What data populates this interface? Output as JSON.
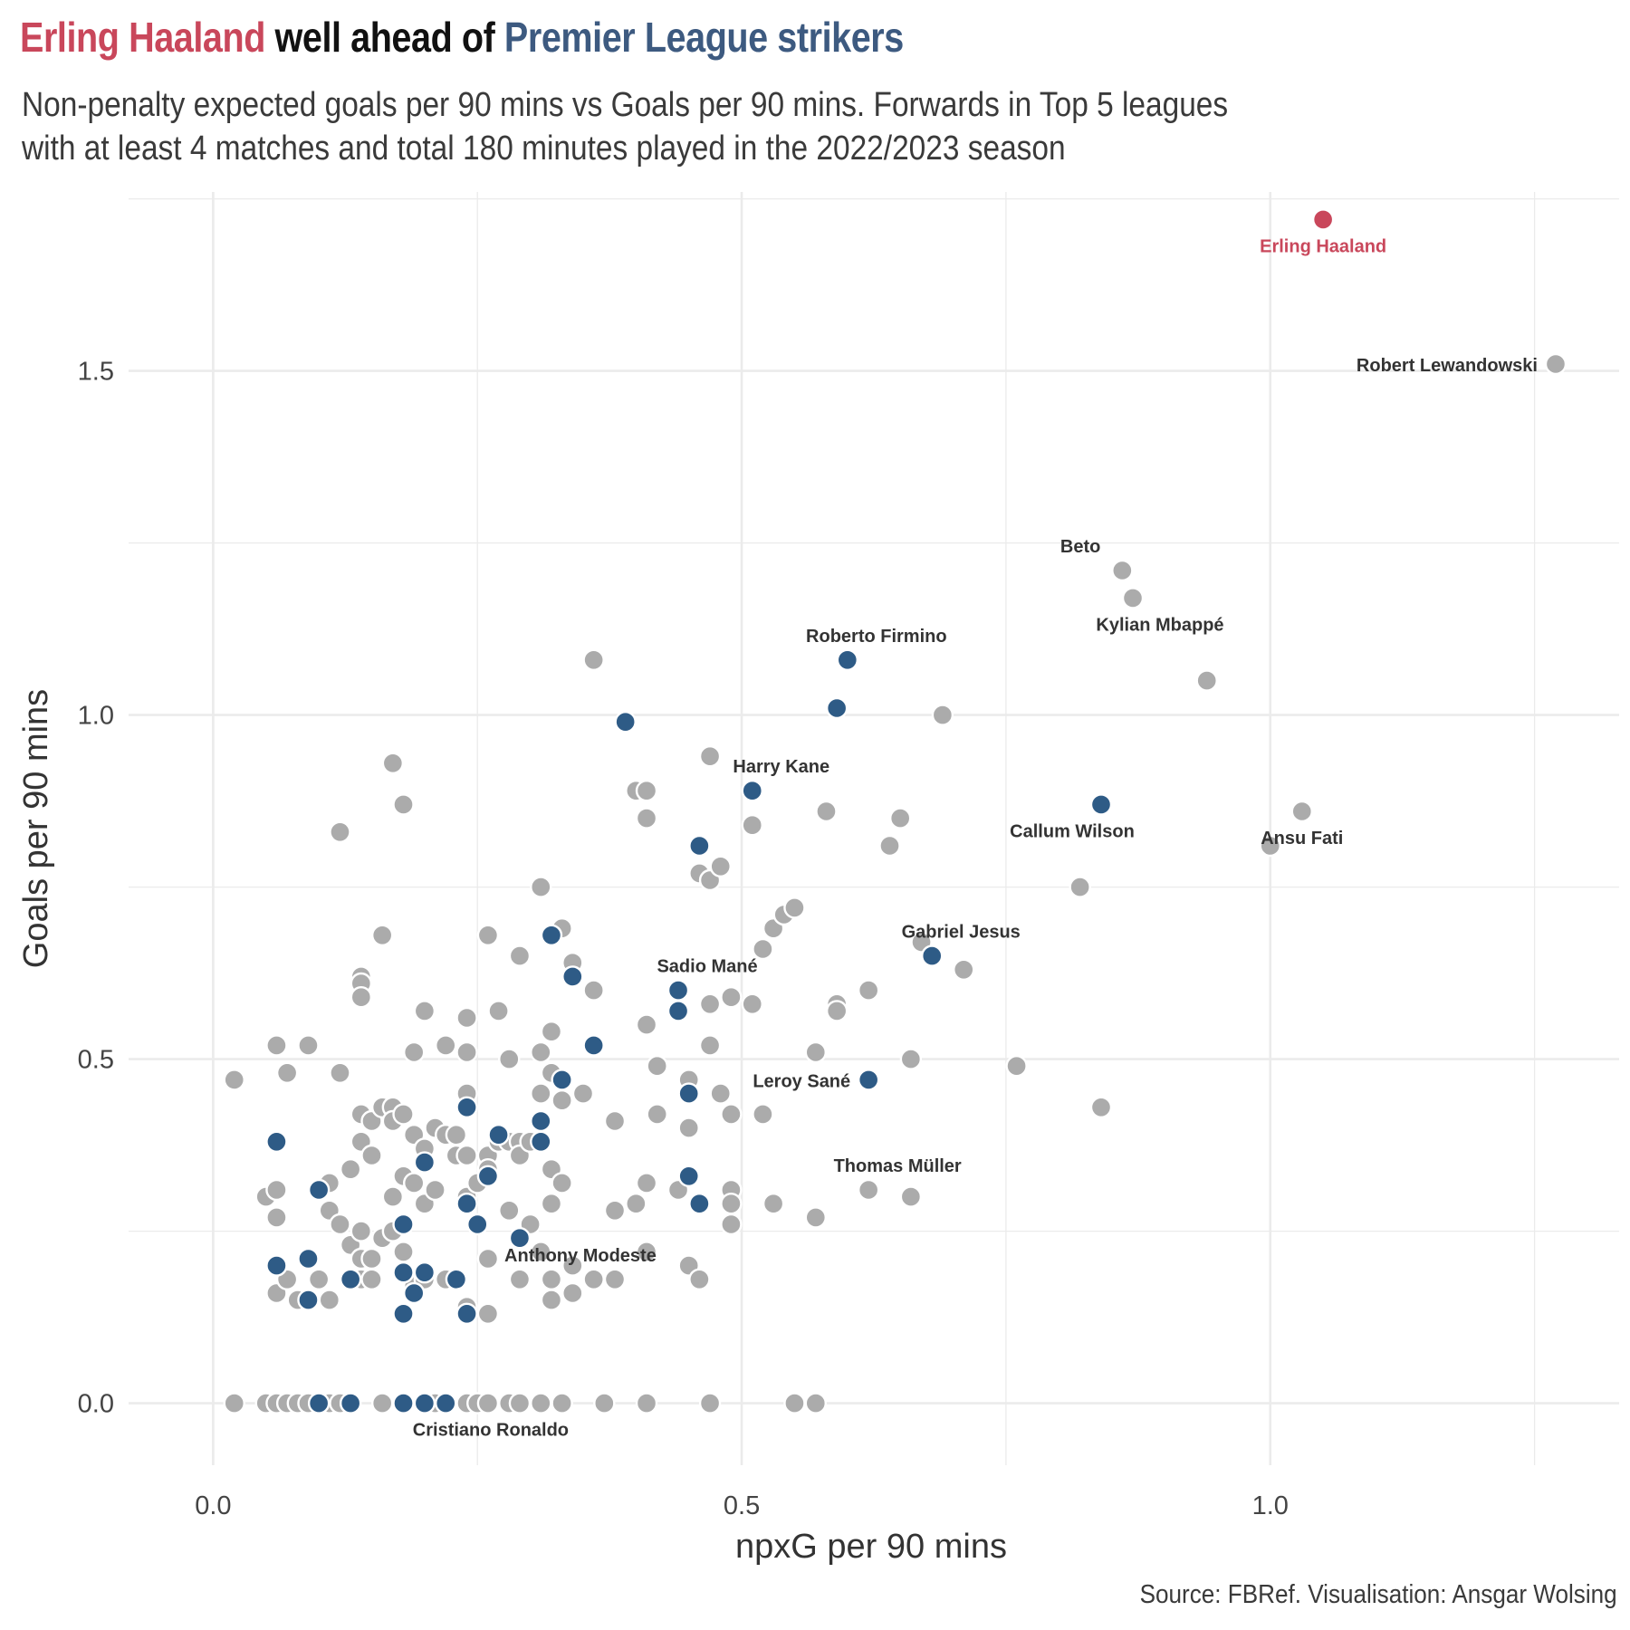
{
  "title": {
    "part1": "Erling Haaland",
    "part2": " well ahead of ",
    "part3": "Premier League strikers"
  },
  "subtitle": {
    "line1": "Non-penalty expected goals per 90 mins vs Goals per 90 mins. Forwards in Top 5 leagues",
    "line2": "with at least 4 matches and total 180 minutes played in the 2022/2023 season"
  },
  "caption": "Source: FBRef. Visualisation: Ansgar Wolsing",
  "colors": {
    "haaland": "#c9475b",
    "premier_league": "#2e5b86",
    "other": "#ababab",
    "title_blue": "#3d5a80",
    "grid": "#ebebeb",
    "label": "#333333"
  },
  "chart_data": {
    "type": "scatter",
    "xlabel": "npxG per 90 mins",
    "ylabel": "Goals per 90 mins",
    "xlim": [
      -0.08,
      1.33
    ],
    "ylim": [
      -0.09,
      1.76
    ],
    "x_ticks": [
      0.0,
      0.5,
      1.0
    ],
    "x_tick_labels": [
      "0.0",
      "0.5",
      "1.0"
    ],
    "y_ticks": [
      0.0,
      0.5,
      1.0,
      1.5
    ],
    "y_tick_labels": [
      "0.0",
      "0.5",
      "1.0",
      "1.5"
    ],
    "grid": true,
    "legend": "none",
    "series": [
      {
        "group": "other",
        "points": [
          [
            0.02,
            0.47
          ],
          [
            0.05,
            0.3
          ],
          [
            0.06,
            0.52
          ],
          [
            0.06,
            0.31
          ],
          [
            0.06,
            0.27
          ],
          [
            0.06,
            0.16
          ],
          [
            0.07,
            0.48
          ],
          [
            0.07,
            0.18
          ],
          [
            0.08,
            0.15
          ],
          [
            0.09,
            0.52
          ],
          [
            0.1,
            0.18
          ],
          [
            0.11,
            0.32
          ],
          [
            0.11,
            0.28
          ],
          [
            0.11,
            0.15
          ],
          [
            0.12,
            0.83
          ],
          [
            0.12,
            0.48
          ],
          [
            0.12,
            0.26
          ],
          [
            0.13,
            0.34
          ],
          [
            0.13,
            0.23
          ],
          [
            0.14,
            0.62
          ],
          [
            0.14,
            0.61
          ],
          [
            0.14,
            0.59
          ],
          [
            0.14,
            0.42
          ],
          [
            0.14,
            0.38
          ],
          [
            0.14,
            0.25
          ],
          [
            0.14,
            0.21
          ],
          [
            0.14,
            0.18
          ],
          [
            0.15,
            0.41
          ],
          [
            0.15,
            0.36
          ],
          [
            0.15,
            0.21
          ],
          [
            0.15,
            0.18
          ],
          [
            0.16,
            0.68
          ],
          [
            0.16,
            0.43
          ],
          [
            0.16,
            0.24
          ],
          [
            0.17,
            0.93
          ],
          [
            0.17,
            0.43
          ],
          [
            0.17,
            0.41
          ],
          [
            0.17,
            0.3
          ],
          [
            0.17,
            0.25
          ],
          [
            0.18,
            0.87
          ],
          [
            0.18,
            0.42
          ],
          [
            0.18,
            0.33
          ],
          [
            0.18,
            0.22
          ],
          [
            0.19,
            0.51
          ],
          [
            0.19,
            0.39
          ],
          [
            0.19,
            0.32
          ],
          [
            0.19,
            0.17
          ],
          [
            0.2,
            0.57
          ],
          [
            0.2,
            0.37
          ],
          [
            0.2,
            0.29
          ],
          [
            0.2,
            0.18
          ],
          [
            0.21,
            0.4
          ],
          [
            0.21,
            0.31
          ],
          [
            0.22,
            0.52
          ],
          [
            0.22,
            0.39
          ],
          [
            0.22,
            0.18
          ],
          [
            0.23,
            0.39
          ],
          [
            0.23,
            0.36
          ],
          [
            0.24,
            0.56
          ],
          [
            0.24,
            0.51
          ],
          [
            0.24,
            0.45
          ],
          [
            0.24,
            0.36
          ],
          [
            0.24,
            0.3
          ],
          [
            0.24,
            0.14
          ],
          [
            0.25,
            0.32
          ],
          [
            0.26,
            0.68
          ],
          [
            0.26,
            0.36
          ],
          [
            0.26,
            0.34
          ],
          [
            0.26,
            0.21
          ],
          [
            0.26,
            0.13
          ],
          [
            0.27,
            0.57
          ],
          [
            0.27,
            0.38
          ],
          [
            0.28,
            0.5
          ],
          [
            0.28,
            0.38
          ],
          [
            0.28,
            0.28
          ],
          [
            0.29,
            0.65
          ],
          [
            0.29,
            0.38
          ],
          [
            0.29,
            0.36
          ],
          [
            0.29,
            0.18
          ],
          [
            0.3,
            0.38
          ],
          [
            0.3,
            0.26
          ],
          [
            0.31,
            0.75
          ],
          [
            0.31,
            0.51
          ],
          [
            0.31,
            0.45
          ],
          [
            0.31,
            0.22
          ],
          [
            0.32,
            0.54
          ],
          [
            0.32,
            0.48
          ],
          [
            0.32,
            0.34
          ],
          [
            0.32,
            0.29
          ],
          [
            0.32,
            0.18
          ],
          [
            0.32,
            0.15
          ],
          [
            0.33,
            0.69
          ],
          [
            0.33,
            0.44
          ],
          [
            0.33,
            0.32
          ],
          [
            0.34,
            0.64
          ],
          [
            0.34,
            0.2
          ],
          [
            0.34,
            0.16
          ],
          [
            0.35,
            0.45
          ],
          [
            0.36,
            1.08
          ],
          [
            0.36,
            0.6
          ],
          [
            0.36,
            0.18
          ],
          [
            0.38,
            0.41
          ],
          [
            0.38,
            0.28
          ],
          [
            0.38,
            0.18
          ],
          [
            0.4,
            0.89
          ],
          [
            0.4,
            0.29
          ],
          [
            0.41,
            0.89
          ],
          [
            0.41,
            0.85
          ],
          [
            0.41,
            0.55
          ],
          [
            0.41,
            0.32
          ],
          [
            0.41,
            0.22
          ],
          [
            0.42,
            0.49
          ],
          [
            0.42,
            0.42
          ],
          [
            0.44,
            0.31
          ],
          [
            0.45,
            0.47
          ],
          [
            0.45,
            0.4
          ],
          [
            0.45,
            0.2
          ],
          [
            0.46,
            0.77
          ],
          [
            0.46,
            0.18
          ],
          [
            0.47,
            0.94
          ],
          [
            0.47,
            0.76
          ],
          [
            0.47,
            0.58
          ],
          [
            0.47,
            0.52
          ],
          [
            0.48,
            0.78
          ],
          [
            0.48,
            0.45
          ],
          [
            0.49,
            0.59
          ],
          [
            0.49,
            0.42
          ],
          [
            0.49,
            0.31
          ],
          [
            0.49,
            0.29
          ],
          [
            0.49,
            0.26
          ],
          [
            0.51,
            0.84
          ],
          [
            0.51,
            0.58
          ],
          [
            0.52,
            0.66
          ],
          [
            0.52,
            0.42
          ],
          [
            0.53,
            0.69
          ],
          [
            0.53,
            0.29
          ],
          [
            0.54,
            0.71
          ],
          [
            0.55,
            0.72
          ],
          [
            0.57,
            0.51
          ],
          [
            0.57,
            0.27
          ],
          [
            0.58,
            0.86
          ],
          [
            0.59,
            0.58
          ],
          [
            0.59,
            0.57
          ],
          [
            0.62,
            0.6
          ],
          [
            0.62,
            0.31
          ],
          [
            0.64,
            0.81
          ],
          [
            0.65,
            0.85
          ],
          [
            0.66,
            0.5
          ],
          [
            0.66,
            0.3
          ],
          [
            0.67,
            0.67
          ],
          [
            0.69,
            1.0
          ],
          [
            0.71,
            0.63
          ],
          [
            0.76,
            0.49
          ],
          [
            0.82,
            0.75
          ],
          [
            0.84,
            0.43
          ],
          [
            0.86,
            1.21
          ],
          [
            0.87,
            1.17
          ],
          [
            0.94,
            1.05
          ],
          [
            1.0,
            0.81
          ],
          [
            1.03,
            0.86
          ],
          [
            1.27,
            1.51
          ],
          [
            0.02,
            0.0
          ],
          [
            0.05,
            0.0
          ],
          [
            0.06,
            0.0
          ],
          [
            0.07,
            0.0
          ],
          [
            0.08,
            0.0
          ],
          [
            0.09,
            0.0
          ],
          [
            0.11,
            0.0
          ],
          [
            0.12,
            0.0
          ],
          [
            0.13,
            0.0
          ],
          [
            0.16,
            0.0
          ],
          [
            0.18,
            0.0
          ],
          [
            0.21,
            0.0
          ],
          [
            0.22,
            0.0
          ],
          [
            0.24,
            0.0
          ],
          [
            0.25,
            0.0
          ],
          [
            0.26,
            0.0
          ],
          [
            0.28,
            0.0
          ],
          [
            0.29,
            0.0
          ],
          [
            0.31,
            0.0
          ],
          [
            0.33,
            0.0
          ],
          [
            0.37,
            0.0
          ],
          [
            0.41,
            0.0
          ],
          [
            0.47,
            0.0
          ],
          [
            0.55,
            0.0
          ],
          [
            0.57,
            0.0
          ]
        ]
      },
      {
        "group": "premier_league",
        "points": [
          [
            0.06,
            0.38
          ],
          [
            0.06,
            0.2
          ],
          [
            0.09,
            0.21
          ],
          [
            0.09,
            0.15
          ],
          [
            0.1,
            0.31
          ],
          [
            0.13,
            0.18
          ],
          [
            0.18,
            0.26
          ],
          [
            0.18,
            0.19
          ],
          [
            0.18,
            0.13
          ],
          [
            0.19,
            0.16
          ],
          [
            0.2,
            0.35
          ],
          [
            0.2,
            0.19
          ],
          [
            0.23,
            0.18
          ],
          [
            0.24,
            0.43
          ],
          [
            0.24,
            0.29
          ],
          [
            0.24,
            0.13
          ],
          [
            0.25,
            0.26
          ],
          [
            0.26,
            0.33
          ],
          [
            0.27,
            0.39
          ],
          [
            0.29,
            0.24
          ],
          [
            0.31,
            0.41
          ],
          [
            0.31,
            0.38
          ],
          [
            0.32,
            0.68
          ],
          [
            0.33,
            0.47
          ],
          [
            0.34,
            0.62
          ],
          [
            0.36,
            0.52
          ],
          [
            0.39,
            0.99
          ],
          [
            0.44,
            0.6
          ],
          [
            0.44,
            0.57
          ],
          [
            0.45,
            0.45
          ],
          [
            0.45,
            0.33
          ],
          [
            0.46,
            0.81
          ],
          [
            0.46,
            0.29
          ],
          [
            0.51,
            0.89
          ],
          [
            0.59,
            1.01
          ],
          [
            0.6,
            1.08
          ],
          [
            0.62,
            0.47
          ],
          [
            0.68,
            0.65
          ],
          [
            0.84,
            0.87
          ],
          [
            0.1,
            0.0
          ],
          [
            0.13,
            0.0
          ],
          [
            0.18,
            0.0
          ],
          [
            0.2,
            0.0
          ],
          [
            0.22,
            0.0
          ]
        ]
      },
      {
        "group": "haaland",
        "points": [
          [
            1.05,
            1.72
          ]
        ]
      }
    ],
    "annotations": [
      {
        "text": "Erling Haaland",
        "x": 1.05,
        "y": 1.72,
        "pos": "below",
        "group": "haaland"
      },
      {
        "text": "Robert Lewandowski",
        "x": 1.27,
        "y": 1.51,
        "pos": "left"
      },
      {
        "text": "Beto",
        "x": 0.86,
        "y": 1.21,
        "pos": "upper-left"
      },
      {
        "text": "Kylian Mbappé",
        "x": 0.87,
        "y": 1.17,
        "pos": "below-right"
      },
      {
        "text": "Roberto Firmino",
        "x": 0.6,
        "y": 1.08,
        "pos": "above-right"
      },
      {
        "text": "Harry Kane",
        "x": 0.51,
        "y": 0.89,
        "pos": "above-right"
      },
      {
        "text": "Callum Wilson",
        "x": 0.84,
        "y": 0.87,
        "pos": "below-left"
      },
      {
        "text": "Ansu Fati",
        "x": 1.03,
        "y": 0.86,
        "pos": "below"
      },
      {
        "text": "Gabriel Jesus",
        "x": 0.68,
        "y": 0.65,
        "pos": "above-right"
      },
      {
        "text": "Sadio Mané",
        "x": 0.44,
        "y": 0.6,
        "pos": "above-right"
      },
      {
        "text": "Leroy Sané",
        "x": 0.62,
        "y": 0.47,
        "pos": "left"
      },
      {
        "text": "Thomas Müller",
        "x": 0.62,
        "y": 0.31,
        "pos": "above-right"
      },
      {
        "text": "Anthony Modeste",
        "x": 0.32,
        "y": 0.18,
        "pos": "above-right"
      },
      {
        "text": "Cristiano Ronaldo",
        "x": 0.29,
        "y": 0.0,
        "pos": "below-left"
      }
    ]
  }
}
